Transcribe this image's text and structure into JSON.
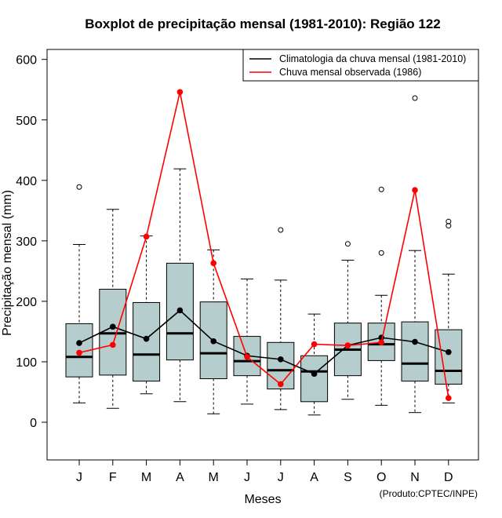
{
  "chart_data": {
    "type": "boxplot",
    "title": "Boxplot de precipitação mensal (1981-2010): Região 122",
    "xlabel": "Meses",
    "ylabel": "Precipitação mensal (mm)",
    "ylim": [
      -62,
      620
    ],
    "yticks": [
      0,
      100,
      200,
      300,
      400,
      500,
      600
    ],
    "categories": [
      "J",
      "F",
      "M",
      "A",
      "M",
      "J",
      "J",
      "A",
      "S",
      "O",
      "N",
      "D"
    ],
    "boxes": [
      {
        "whisker_low": 32,
        "q1": 75,
        "median": 108,
        "q3": 163,
        "whisker_high": 294,
        "outliers": [
          389
        ]
      },
      {
        "whisker_low": 23,
        "q1": 78,
        "median": 147,
        "q3": 220,
        "whisker_high": 352,
        "outliers": []
      },
      {
        "whisker_low": 47,
        "q1": 68,
        "median": 112,
        "q3": 198,
        "whisker_high": 308,
        "outliers": []
      },
      {
        "whisker_low": 34,
        "q1": 103,
        "median": 147,
        "q3": 263,
        "whisker_high": 419,
        "outliers": []
      },
      {
        "whisker_low": 14,
        "q1": 72,
        "median": 114,
        "q3": 199,
        "whisker_high": 285,
        "outliers": []
      },
      {
        "whisker_low": 30,
        "q1": 77,
        "median": 101,
        "q3": 142,
        "whisker_high": 237,
        "outliers": []
      },
      {
        "whisker_low": 21,
        "q1": 55,
        "median": 86,
        "q3": 132,
        "whisker_high": 235,
        "outliers": [
          318
        ]
      },
      {
        "whisker_low": 12,
        "q1": 34,
        "median": 84,
        "q3": 110,
        "whisker_high": 179,
        "outliers": []
      },
      {
        "whisker_low": 38,
        "q1": 77,
        "median": 120,
        "q3": 164,
        "whisker_high": 268,
        "outliers": [
          295
        ]
      },
      {
        "whisker_low": 28,
        "q1": 102,
        "median": 129,
        "q3": 164,
        "whisker_high": 210,
        "outliers": [
          280,
          385
        ]
      },
      {
        "whisker_low": 16,
        "q1": 68,
        "median": 97,
        "q3": 166,
        "whisker_high": 284,
        "outliers": [
          536
        ]
      },
      {
        "whisker_low": 32,
        "q1": 63,
        "median": 85,
        "q3": 153,
        "whisker_high": 245,
        "outliers": [
          325,
          332
        ]
      }
    ],
    "series": [
      {
        "name": "Climatologia da chuva mensal (1981-2010)",
        "color": "#000000",
        "values": [
          131,
          158,
          138,
          185,
          134,
          110,
          104,
          80,
          127,
          140,
          133,
          116
        ]
      },
      {
        "name": "Chuva mensal observada (1986)",
        "color": "#ff0000",
        "values": [
          115,
          128,
          307,
          546,
          263,
          108,
          63,
          129,
          127,
          132,
          384,
          40
        ]
      }
    ],
    "box_fill": "#b5cdcd",
    "legend_position": "top-right",
    "credit": "(Produto:CPTEC/INPE)"
  }
}
